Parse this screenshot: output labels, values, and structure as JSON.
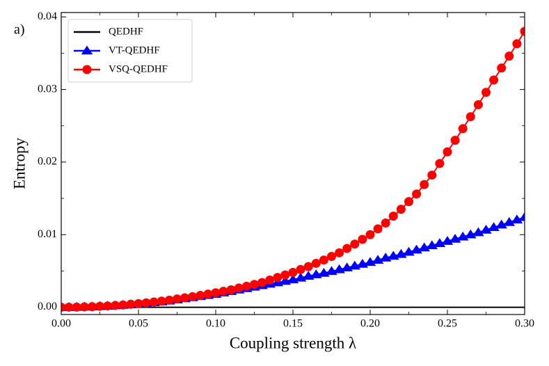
{
  "chart_data": {
    "type": "line",
    "annotation": "a)",
    "xlabel": "Coupling strength λ",
    "ylabel": "Entropy",
    "xlim": [
      0,
      0.3
    ],
    "ylim": [
      -0.001,
      0.0406
    ],
    "xticks": [
      {
        "value": 0,
        "label": "0.00"
      },
      {
        "value": 0.05,
        "label": "0.05"
      },
      {
        "value": 0.1,
        "label": "0.10"
      },
      {
        "value": 0.15,
        "label": "0.15"
      },
      {
        "value": 0.2,
        "label": "0.20"
      },
      {
        "value": 0.25,
        "label": "0.25"
      },
      {
        "value": 0.3,
        "label": "0.30"
      }
    ],
    "yticks": [
      {
        "value": 0,
        "label": "0.00"
      },
      {
        "value": 0.01,
        "label": "0.01"
      },
      {
        "value": 0.02,
        "label": "0.02"
      },
      {
        "value": 0.03,
        "label": "0.03"
      },
      {
        "value": 0.04,
        "label": "0.04"
      }
    ],
    "xminorticks": [
      0.025,
      0.075,
      0.125,
      0.175,
      0.225,
      0.275
    ],
    "yminorticks": [
      0.005,
      0.015,
      0.025,
      0.035
    ],
    "legend": "upper left",
    "x": [
      0,
      0.005,
      0.01,
      0.015,
      0.02,
      0.025,
      0.03,
      0.035,
      0.04,
      0.045,
      0.05,
      0.055,
      0.06,
      0.065,
      0.07,
      0.075,
      0.08,
      0.085,
      0.09,
      0.095,
      0.1,
      0.105,
      0.11,
      0.115,
      0.12,
      0.125,
      0.13,
      0.135,
      0.14,
      0.145,
      0.15,
      0.155,
      0.16,
      0.165,
      0.17,
      0.175,
      0.18,
      0.185,
      0.19,
      0.195,
      0.2,
      0.205,
      0.21,
      0.215,
      0.22,
      0.225,
      0.23,
      0.235,
      0.24,
      0.245,
      0.25,
      0.255,
      0.26,
      0.265,
      0.27,
      0.275,
      0.28,
      0.285,
      0.29,
      0.295,
      0.3
    ],
    "series": [
      {
        "name": "QEDHF",
        "color": "#000000",
        "marker": "none",
        "values": [
          0,
          0,
          0,
          0,
          0,
          0,
          0,
          0,
          0,
          0,
          0,
          0,
          0,
          0,
          0,
          0,
          0,
          0,
          0,
          0,
          0,
          0,
          0,
          0,
          0,
          0,
          0,
          0,
          0,
          0,
          0,
          0,
          0,
          0,
          0,
          0,
          0,
          0,
          0,
          0,
          0,
          0,
          0,
          0,
          0,
          0,
          0,
          0,
          0,
          0,
          0,
          0,
          0,
          0,
          0,
          0,
          0,
          0,
          0,
          0,
          0
        ]
      },
      {
        "name": "VT-QEDHF",
        "color": "#0000ff",
        "marker": "triangle",
        "values": [
          0,
          1e-05,
          2e-05,
          5e-05,
          8e-05,
          0.00013,
          0.00018,
          0.00024,
          0.0003,
          0.00037,
          0.00045,
          0.00055,
          0.00065,
          0.00076,
          0.00088,
          0.00104,
          0.0012,
          0.00135,
          0.0015,
          0.00165,
          0.0018,
          0.002,
          0.0022,
          0.0024,
          0.0026,
          0.0028,
          0.003,
          0.0032,
          0.0034,
          0.0036,
          0.0038,
          0.00405,
          0.0043,
          0.0045,
          0.0047,
          0.00495,
          0.0052,
          0.00545,
          0.0057,
          0.00595,
          0.0062,
          0.0065,
          0.0068,
          0.00705,
          0.0073,
          0.0076,
          0.0079,
          0.0082,
          0.0085,
          0.0088,
          0.0091,
          0.0094,
          0.0097,
          0.01,
          0.0103,
          0.01065,
          0.011,
          0.01135,
          0.0117,
          0.01205,
          0.0124
        ]
      },
      {
        "name": "VSQ-QEDHF",
        "color": "#ff0000",
        "marker": "circle",
        "values": [
          0,
          1e-05,
          2e-05,
          5e-05,
          8e-05,
          0.00013,
          0.00018,
          0.00025,
          0.00032,
          0.00041,
          0.0005,
          0.00061,
          0.00072,
          0.00085,
          0.00098,
          0.00114,
          0.0013,
          0.00146,
          0.00163,
          0.00181,
          0.002,
          0.0022,
          0.0024,
          0.00265,
          0.0029,
          0.00315,
          0.0034,
          0.00375,
          0.0041,
          0.00445,
          0.0048,
          0.0052,
          0.0056,
          0.00605,
          0.0065,
          0.007,
          0.0075,
          0.0081,
          0.0087,
          0.00935,
          0.01,
          0.0108,
          0.0116,
          0.01255,
          0.0135,
          0.01455,
          0.0156,
          0.0169,
          0.0182,
          0.0198,
          0.0214,
          0.023,
          0.0246,
          0.02625,
          0.0279,
          0.0296,
          0.0313,
          0.03295,
          0.0346,
          0.0363,
          0.038
        ]
      }
    ]
  }
}
